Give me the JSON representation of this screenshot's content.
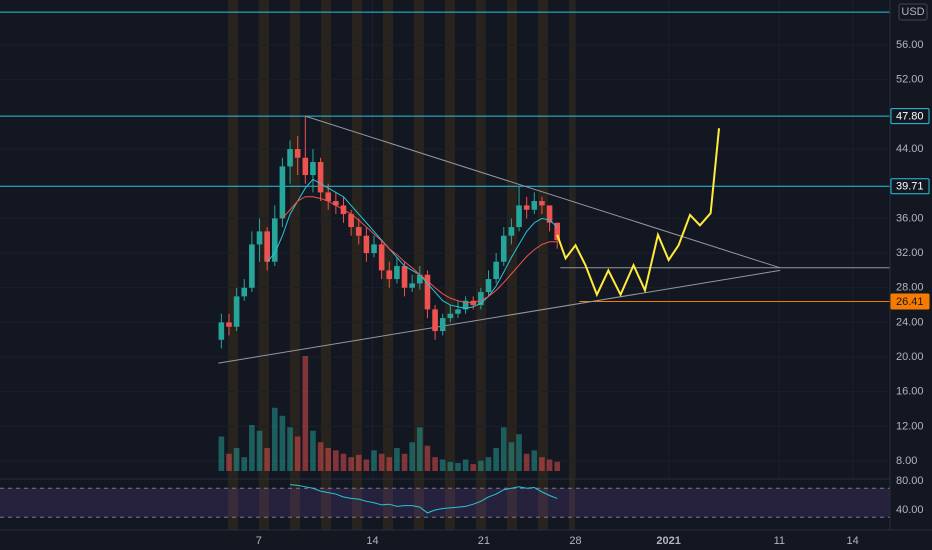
{
  "chart_data": {
    "type": "candlestick",
    "currency": "USD",
    "x": [
      29,
      30,
      31,
      32,
      33,
      34,
      35,
      36,
      37,
      38,
      39,
      40,
      41,
      42,
      43,
      44,
      45,
      46,
      47,
      48,
      49,
      50,
      51,
      52,
      53,
      54,
      55,
      56,
      57,
      58,
      59,
      60,
      61,
      62,
      63,
      64,
      65,
      66,
      67,
      68,
      69,
      70,
      71,
      72,
      73
    ],
    "open": [
      22,
      24,
      23.5,
      27,
      28,
      33,
      34.5,
      31,
      36,
      42,
      44,
      43,
      41,
      42.5,
      39,
      38,
      37.5,
      36.5,
      35,
      34,
      32,
      33,
      30,
      29,
      30.5,
      28,
      28.5,
      29.5,
      25.5,
      23,
      24.5,
      25,
      25.5,
      26.5,
      26,
      27.5,
      29,
      31,
      34,
      35,
      37.5,
      37,
      38,
      37.5,
      35.5
    ],
    "high": [
      25,
      25,
      28,
      29,
      34.5,
      36,
      35,
      37.5,
      43,
      45,
      45.5,
      47.8,
      44,
      43,
      40,
      39,
      38.5,
      37,
      36,
      35,
      34,
      33.5,
      31,
      31.5,
      31,
      29.5,
      30.5,
      30,
      26,
      25,
      26,
      26.5,
      27,
      27,
      28,
      30,
      32,
      35,
      36,
      39.7,
      38.5,
      39,
      38.5,
      37.5,
      35.5
    ],
    "low": [
      21,
      22.5,
      23,
      26.5,
      27.5,
      31,
      30,
      30.5,
      35,
      40,
      41,
      40,
      39,
      38,
      37,
      36.5,
      35.5,
      34,
      33,
      31,
      31.5,
      29,
      28,
      28.5,
      27,
      27.5,
      27.8,
      24.5,
      22,
      22.5,
      24,
      24.5,
      25,
      25.5,
      25.5,
      27,
      28.5,
      30.5,
      33,
      34.5,
      36,
      36.5,
      36.5,
      34.5,
      32.5
    ],
    "close": [
      24,
      23.5,
      27,
      28,
      33,
      34.5,
      31,
      36,
      42,
      44,
      43,
      41,
      42.5,
      39,
      38,
      37.5,
      36.5,
      35,
      34,
      32,
      33,
      30,
      29,
      30.5,
      28,
      28.5,
      29.5,
      25.5,
      23,
      24.5,
      25,
      25.5,
      26.5,
      26,
      27.5,
      29,
      31,
      34,
      35,
      37.5,
      37,
      38,
      37.5,
      35.5,
      33.5
    ],
    "volume": [
      30,
      15,
      20,
      12,
      40,
      35,
      20,
      55,
      48,
      38,
      30,
      100,
      35,
      25,
      20,
      18,
      15,
      12,
      14,
      10,
      18,
      15,
      12,
      20,
      15,
      25,
      38,
      22,
      12,
      10,
      8,
      7,
      10,
      6,
      9,
      12,
      20,
      38,
      25,
      32,
      15,
      18,
      12,
      10,
      8
    ],
    "up_color": "#26a69a",
    "down_color": "#ef5350",
    "moving_averages": [
      {
        "color": "#26c6da",
        "values": [
          null,
          null,
          null,
          null,
          null,
          null,
          31,
          32,
          34,
          36.5,
          38,
          39.5,
          40.5,
          40,
          39.5,
          39,
          38.5,
          37.5,
          36.5,
          35.5,
          34.5,
          33.5,
          32.5,
          31.5,
          30.5,
          30,
          29.5,
          28.5,
          27.5,
          26.5,
          26,
          25.8,
          25.6,
          25.8,
          26.2,
          27,
          28.2,
          29.8,
          31.5,
          33,
          34.5,
          35.5,
          36,
          35.8,
          35
        ]
      },
      {
        "color": "#ef5350",
        "values": [
          null,
          null,
          null,
          null,
          null,
          null,
          null,
          null,
          36,
          37,
          38,
          38.5,
          38.5,
          38.3,
          38,
          37.5,
          37,
          36.5,
          35.8,
          35,
          34.2,
          33.4,
          32.5,
          31.8,
          31,
          30.3,
          29.5,
          28.8,
          28,
          27.3,
          26.8,
          26.5,
          26.3,
          26.3,
          26.5,
          27,
          27.7,
          28.6,
          29.6,
          30.6,
          31.6,
          32.4,
          33,
          33.3,
          33.3
        ]
      }
    ],
    "xlim": [
      0,
      116.6
    ],
    "ylim": [
      6,
      61.2
    ],
    "xticks": [
      {
        "value": 33.9,
        "label": "7"
      },
      {
        "value": 48.8,
        "label": "14"
      },
      {
        "value": 63.4,
        "label": "21"
      },
      {
        "value": 75.4,
        "label": "28"
      },
      {
        "value": 87.6,
        "label": "2021"
      },
      {
        "value": 102.1,
        "label": "11"
      },
      {
        "value": 111.7,
        "label": "14"
      }
    ],
    "yticks": [
      {
        "value": 56,
        "label": "56.00"
      },
      {
        "value": 52,
        "label": "52.00"
      },
      {
        "value": 44,
        "label": "44.00"
      },
      {
        "value": 36,
        "label": "36.00"
      },
      {
        "value": 32,
        "label": "32.00"
      },
      {
        "value": 28,
        "label": "28.00"
      },
      {
        "value": 24,
        "label": "24.00"
      },
      {
        "value": 20,
        "label": "20.00"
      },
      {
        "value": 16,
        "label": "16.00"
      },
      {
        "value": 12,
        "label": "12.00"
      },
      {
        "value": 8,
        "label": "8.00"
      }
    ],
    "grid": true,
    "price_lines": [
      {
        "value": 59.8,
        "color": "#26c6da"
      },
      {
        "value": 47.8,
        "label": "47.80",
        "color": "#26c6da"
      },
      {
        "value": 39.71,
        "label": "39.71",
        "color": "#26c6da"
      },
      {
        "value": 26.41,
        "label": "26.41",
        "color": "#f57c00",
        "from": 75.9
      }
    ],
    "trendlines": [
      {
        "x": [
          40,
          102.2
        ],
        "y": [
          47.8,
          30.3
        ],
        "color": "#9598a1"
      },
      {
        "x": [
          28.6,
          102.2
        ],
        "y": [
          19.3,
          30.0
        ],
        "color": "#9598a1"
      },
      {
        "x": [
          73.4,
          116.6
        ],
        "y": [
          30.3,
          30.3
        ],
        "color": "#9598a1"
      }
    ],
    "drawing": {
      "color": "#ffeb3b",
      "x": [
        73.0,
        74.1,
        75.4,
        76.7,
        78.2,
        79.7,
        81.3,
        83.0,
        84.5,
        86.2,
        87.6,
        88.9,
        90.4,
        91.7,
        93.1,
        94.2
      ],
      "y": [
        34.1,
        31.4,
        32.9,
        30.6,
        27.2,
        30.0,
        27.2,
        30.6,
        27.7,
        34.1,
        31.2,
        32.9,
        36.4,
        35.2,
        36.6,
        46.4
      ]
    },
    "rsi": {
      "color": "#26c6da",
      "values": [
        null,
        null,
        null,
        null,
        null,
        null,
        null,
        null,
        null,
        75,
        74,
        72,
        70,
        66,
        64,
        62,
        58,
        56,
        55,
        52,
        50,
        47,
        48,
        45,
        46,
        46,
        44,
        36,
        40,
        42,
        43,
        44,
        45,
        48,
        52,
        58,
        62,
        68,
        70,
        72,
        70,
        71,
        65,
        60,
        56
      ],
      "ylim": [
        12.4,
        81.4
      ],
      "yticks": [
        {
          "value": 80,
          "label": "80.00"
        },
        {
          "value": 40,
          "label": "40.00"
        }
      ],
      "bands": [
        30,
        70
      ]
    }
  }
}
